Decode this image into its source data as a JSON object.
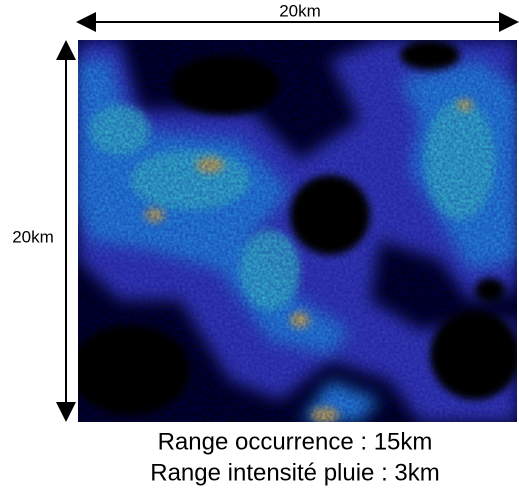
{
  "dimensions": {
    "width": "20km",
    "height": "20km"
  },
  "caption": {
    "line1": "Range occurrence : 15km",
    "line2": "Range intensité pluie : 3km"
  }
}
